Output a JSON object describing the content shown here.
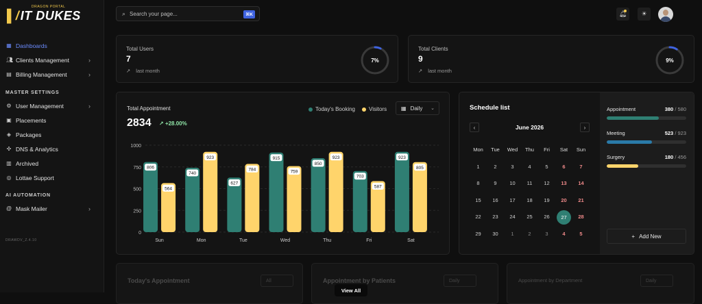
{
  "brand": {
    "tag": "DRAGON PORTAL",
    "name": "IT DUKES",
    "mark": "∕"
  },
  "sidebar": {
    "items": [
      {
        "label": "Dashboards",
        "icon": "grid-icon"
      },
      {
        "label": "Clients Management",
        "icon": "users-icon"
      },
      {
        "label": "Billing Management",
        "icon": "file-icon"
      }
    ],
    "section_master": "MASTER SETTINGS",
    "master_items": [
      {
        "label": "User Management",
        "icon": "user-cog-icon"
      },
      {
        "label": "Placements",
        "icon": "box-icon"
      },
      {
        "label": "Packages",
        "icon": "package-icon"
      },
      {
        "label": "DNS & Analytics",
        "icon": "network-icon"
      },
      {
        "label": "Archived",
        "icon": "archive-icon"
      },
      {
        "label": "Lottae Support",
        "icon": "support-icon"
      }
    ],
    "section_ai": "AI AUTOMATION",
    "ai_items": [
      {
        "label": "Mask Mailer",
        "icon": "at-icon"
      }
    ],
    "version": "DRAWDV_Z.4.10"
  },
  "search": {
    "placeholder": "Search your page...",
    "shortcut": "⌘K"
  },
  "stats": [
    {
      "label": "Total Users",
      "value": "7",
      "sub": "last month",
      "percent": 7,
      "percent_label": "7%"
    },
    {
      "label": "Total Clients",
      "value": "9",
      "sub": "last month",
      "percent": 9,
      "percent_label": "9%"
    }
  ],
  "appointment": {
    "title": "Total Appointment",
    "total": "2834",
    "delta": "+28.00%",
    "legend_booking": "Today's Booking",
    "legend_visitors": "Visitors",
    "range_label": "Daily"
  },
  "colors": {
    "booking": "#2f7f73",
    "visitors": "#ffd46b",
    "accent": "#3f63e0",
    "meeting": "#2a7aa8"
  },
  "chart_data": {
    "type": "bar",
    "categories": [
      "Sun",
      "Mon",
      "Tue",
      "Wed",
      "Thu",
      "Fri",
      "Sat"
    ],
    "series": [
      {
        "name": "Today's Booking",
        "values": [
          806,
          740,
          627,
          915,
          850,
          703,
          923
        ]
      },
      {
        "name": "Visitors",
        "values": [
          564,
          923,
          784,
          759,
          923,
          587,
          805
        ]
      }
    ],
    "yticks": [
      0,
      250,
      500,
      750,
      1000
    ],
    "ylim": [
      0,
      1000
    ],
    "grid": true
  },
  "schedule": {
    "title": "Schedule list",
    "month": "June 2026",
    "weekdays": [
      "Mon",
      "Tue",
      "Wed",
      "Thu",
      "Fri",
      "Sat",
      "Sun"
    ],
    "weeks": [
      [
        "1",
        "2",
        "3",
        "4",
        "5",
        "6",
        "7"
      ],
      [
        "8",
        "9",
        "10",
        "11",
        "12",
        "13",
        "14"
      ],
      [
        "15",
        "16",
        "17",
        "18",
        "19",
        "20",
        "21"
      ],
      [
        "22",
        "23",
        "24",
        "25",
        "26",
        "27",
        "28"
      ],
      [
        "29",
        "30",
        "1",
        "2",
        "3",
        "4",
        "5"
      ]
    ],
    "today": "27",
    "categories": [
      {
        "label": "Appointment",
        "count": "380",
        "total": "580",
        "fraction": 0.655
      },
      {
        "label": "Meeting",
        "count": "523",
        "total": "923",
        "fraction": 0.567
      },
      {
        "label": "Surgery",
        "count": "180",
        "total": "456",
        "fraction": 0.395
      }
    ],
    "add_label": "Add New"
  },
  "bottom": [
    {
      "title": "Today's Appointment",
      "filter": "All"
    },
    {
      "title": "Appointment by Patients",
      "filter": "Daily"
    },
    {
      "title": "Appointment by Department",
      "filter": "Daily"
    }
  ],
  "view_all": "View All"
}
